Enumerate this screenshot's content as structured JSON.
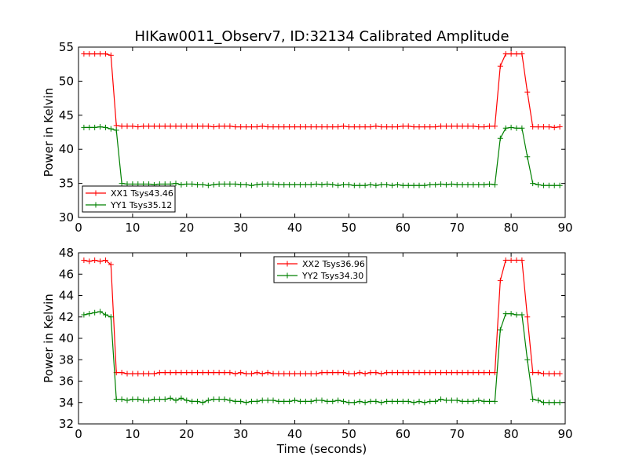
{
  "chart_data": [
    {
      "type": "line",
      "title": "HIKaw0011_Observ7, ID:32134 Calibrated Amplitude",
      "xlabel": "",
      "ylabel": "Power in Kelvin",
      "xlim": [
        0,
        90
      ],
      "ylim": [
        30,
        55
      ],
      "xticks": [
        0,
        10,
        20,
        30,
        40,
        50,
        60,
        70,
        80,
        90
      ],
      "yticks": [
        30,
        35,
        40,
        45,
        50,
        55
      ],
      "legend_position": "lower-left",
      "x": [
        1,
        2,
        3,
        4,
        5,
        6,
        7,
        8,
        9,
        10,
        11,
        12,
        13,
        14,
        15,
        16,
        17,
        18,
        19,
        20,
        21,
        22,
        23,
        24,
        25,
        26,
        27,
        28,
        29,
        30,
        31,
        32,
        33,
        34,
        35,
        36,
        37,
        38,
        39,
        40,
        41,
        42,
        43,
        44,
        45,
        46,
        47,
        48,
        49,
        50,
        51,
        52,
        53,
        54,
        55,
        56,
        57,
        58,
        59,
        60,
        61,
        62,
        63,
        64,
        65,
        66,
        67,
        68,
        69,
        70,
        71,
        72,
        73,
        74,
        75,
        76,
        77,
        78,
        79,
        80,
        81,
        82,
        83,
        84,
        85,
        86,
        87,
        88,
        89
      ],
      "series": [
        {
          "name": "XX1 Tsys43.46",
          "color": "#ff0000",
          "values": [
            54.0,
            54.0,
            54.0,
            54.0,
            54.0,
            53.8,
            43.5,
            43.4,
            43.4,
            43.4,
            43.3,
            43.4,
            43.4,
            43.4,
            43.4,
            43.4,
            43.4,
            43.4,
            43.4,
            43.4,
            43.4,
            43.4,
            43.4,
            43.4,
            43.3,
            43.4,
            43.4,
            43.4,
            43.3,
            43.3,
            43.3,
            43.3,
            43.3,
            43.4,
            43.3,
            43.3,
            43.3,
            43.3,
            43.3,
            43.3,
            43.3,
            43.3,
            43.3,
            43.3,
            43.3,
            43.3,
            43.3,
            43.3,
            43.4,
            43.3,
            43.3,
            43.3,
            43.3,
            43.3,
            43.4,
            43.3,
            43.3,
            43.3,
            43.3,
            43.4,
            43.4,
            43.3,
            43.3,
            43.3,
            43.3,
            43.3,
            43.4,
            43.4,
            43.4,
            43.4,
            43.4,
            43.4,
            43.4,
            43.3,
            43.3,
            43.4,
            43.4,
            52.2,
            54.0,
            54.0,
            54.0,
            54.0,
            48.4,
            43.3,
            43.3,
            43.3,
            43.3,
            43.2,
            43.3
          ]
        },
        {
          "name": "YY1 Tsys35.12",
          "color": "#008000",
          "values": [
            43.2,
            43.2,
            43.2,
            43.3,
            43.2,
            43.0,
            42.8,
            35.0,
            34.9,
            34.9,
            34.9,
            34.9,
            34.9,
            34.8,
            34.9,
            34.9,
            34.9,
            35.0,
            34.8,
            34.9,
            34.9,
            34.8,
            34.8,
            34.7,
            34.8,
            34.9,
            34.9,
            34.9,
            34.9,
            34.8,
            34.8,
            34.7,
            34.8,
            34.9,
            34.9,
            34.9,
            34.8,
            34.8,
            34.8,
            34.8,
            34.8,
            34.8,
            34.8,
            34.9,
            34.8,
            34.9,
            34.8,
            34.7,
            34.8,
            34.8,
            34.7,
            34.7,
            34.7,
            34.8,
            34.7,
            34.8,
            34.8,
            34.7,
            34.8,
            34.7,
            34.7,
            34.7,
            34.7,
            34.7,
            34.8,
            34.8,
            34.9,
            34.8,
            34.9,
            34.8,
            34.8,
            34.8,
            34.8,
            34.8,
            34.8,
            34.9,
            34.8,
            41.6,
            43.1,
            43.2,
            43.1,
            43.1,
            38.9,
            35.0,
            34.8,
            34.7,
            34.7,
            34.7,
            34.7
          ]
        }
      ]
    },
    {
      "type": "line",
      "title": "",
      "xlabel": "Time (seconds)",
      "ylabel": "Power in Kelvin",
      "xlim": [
        0,
        90
      ],
      "ylim": [
        32,
        48
      ],
      "xticks": [
        0,
        10,
        20,
        30,
        40,
        50,
        60,
        70,
        80,
        90
      ],
      "yticks": [
        32,
        34,
        36,
        38,
        40,
        42,
        44,
        46,
        48
      ],
      "legend_position": "upper-center",
      "x": [
        1,
        2,
        3,
        4,
        5,
        6,
        7,
        8,
        9,
        10,
        11,
        12,
        13,
        14,
        15,
        16,
        17,
        18,
        19,
        20,
        21,
        22,
        23,
        24,
        25,
        26,
        27,
        28,
        29,
        30,
        31,
        32,
        33,
        34,
        35,
        36,
        37,
        38,
        39,
        40,
        41,
        42,
        43,
        44,
        45,
        46,
        47,
        48,
        49,
        50,
        51,
        52,
        53,
        54,
        55,
        56,
        57,
        58,
        59,
        60,
        61,
        62,
        63,
        64,
        65,
        66,
        67,
        68,
        69,
        70,
        71,
        72,
        73,
        74,
        75,
        76,
        77,
        78,
        79,
        80,
        81,
        82,
        83,
        84,
        85,
        86,
        87,
        88,
        89
      ],
      "series": [
        {
          "name": "XX2 Tsys36.96",
          "color": "#ff0000",
          "values": [
            47.3,
            47.2,
            47.3,
            47.2,
            47.3,
            46.9,
            36.8,
            36.8,
            36.7,
            36.7,
            36.7,
            36.7,
            36.7,
            36.7,
            36.8,
            36.8,
            36.8,
            36.8,
            36.8,
            36.8,
            36.8,
            36.8,
            36.8,
            36.8,
            36.8,
            36.8,
            36.8,
            36.8,
            36.7,
            36.8,
            36.7,
            36.7,
            36.8,
            36.7,
            36.8,
            36.7,
            36.7,
            36.7,
            36.7,
            36.7,
            36.7,
            36.7,
            36.7,
            36.7,
            36.8,
            36.8,
            36.8,
            36.8,
            36.8,
            36.7,
            36.7,
            36.8,
            36.7,
            36.8,
            36.8,
            36.7,
            36.8,
            36.8,
            36.8,
            36.8,
            36.8,
            36.8,
            36.8,
            36.8,
            36.8,
            36.8,
            36.8,
            36.8,
            36.8,
            36.8,
            36.8,
            36.8,
            36.8,
            36.8,
            36.8,
            36.8,
            36.8,
            45.4,
            47.3,
            47.3,
            47.3,
            47.3,
            42.0,
            36.8,
            36.8,
            36.7,
            36.7,
            36.7,
            36.7
          ]
        },
        {
          "name": "YY2 Tsys34.30",
          "color": "#008000",
          "values": [
            42.2,
            42.3,
            42.4,
            42.5,
            42.2,
            42.0,
            34.3,
            34.3,
            34.2,
            34.3,
            34.3,
            34.2,
            34.2,
            34.3,
            34.3,
            34.3,
            34.4,
            34.2,
            34.4,
            34.2,
            34.1,
            34.1,
            34.0,
            34.2,
            34.3,
            34.3,
            34.3,
            34.2,
            34.1,
            34.1,
            34.0,
            34.1,
            34.1,
            34.2,
            34.2,
            34.2,
            34.1,
            34.1,
            34.1,
            34.2,
            34.1,
            34.1,
            34.1,
            34.2,
            34.2,
            34.1,
            34.1,
            34.2,
            34.1,
            34.0,
            34.0,
            34.1,
            34.0,
            34.1,
            34.1,
            34.0,
            34.1,
            34.1,
            34.1,
            34.1,
            34.1,
            34.0,
            34.1,
            34.0,
            34.1,
            34.1,
            34.3,
            34.2,
            34.2,
            34.2,
            34.1,
            34.1,
            34.1,
            34.2,
            34.1,
            34.1,
            34.1,
            40.8,
            42.3,
            42.3,
            42.2,
            42.2,
            38.0,
            34.3,
            34.2,
            34.0,
            34.0,
            34.0,
            34.0
          ]
        }
      ]
    }
  ]
}
